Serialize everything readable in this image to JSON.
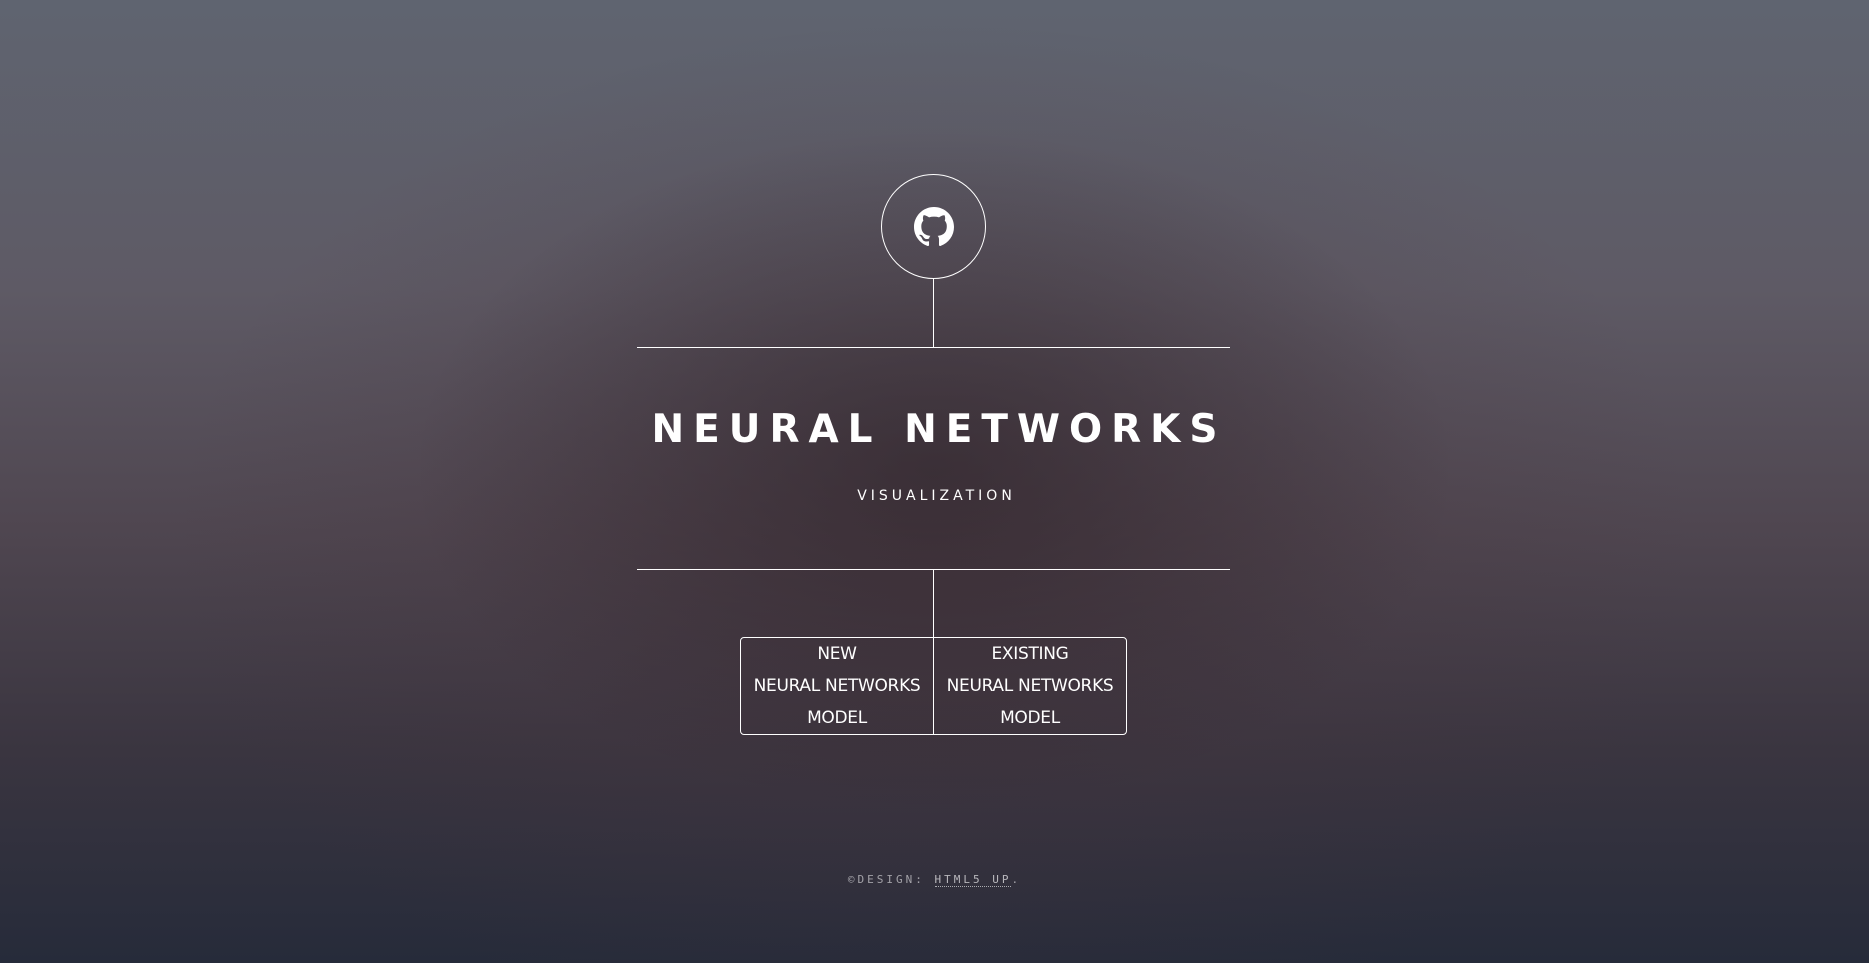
{
  "header": {
    "logo_icon": "github-icon",
    "title": "NEURAL NETWORKS",
    "subtitle": "VISUALIZATION"
  },
  "nav": {
    "items": [
      {
        "label": "NEW\nNEURAL NETWORKS\nMODEL"
      },
      {
        "label": "EXISTING\nNEURAL NETWORKS\nMODEL"
      }
    ]
  },
  "footer": {
    "prefix": "©DESIGN: ",
    "link": "HTML5 UP",
    "suffix": "."
  },
  "colors": {
    "line": "#ffffff",
    "text": "#ffffff"
  }
}
